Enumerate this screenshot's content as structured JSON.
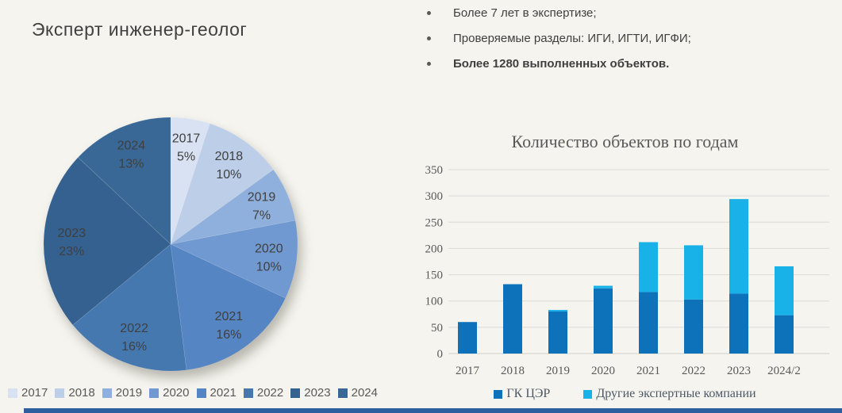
{
  "page": {
    "background": "#f5f4ef",
    "accent_bar_color": "#2d5e9e"
  },
  "title": "Эксперт инженер-геолог",
  "bullets": [
    {
      "text": "Более 7 лет в экспертизе;",
      "bold": false
    },
    {
      "text": "Проверяемые разделы: ИГИ, ИГТИ, ИГФИ;",
      "bold": false
    },
    {
      "text": "Более 1280 выполненных объектов.",
      "bold": true
    }
  ],
  "chart_data": [
    {
      "type": "pie",
      "title": "",
      "labels": [
        "2017",
        "2018",
        "2019",
        "2020",
        "2021",
        "2022",
        "2023",
        "2024"
      ],
      "values": [
        5,
        10,
        7,
        10,
        16,
        16,
        23,
        13
      ],
      "value_suffix": "%",
      "colors": [
        "#d9e2f2",
        "#bccee8",
        "#8fb0dc",
        "#7099d1",
        "#5685c3",
        "#4678b0",
        "#34618f",
        "#396897"
      ],
      "label_color": "#3f3f3f",
      "start_angle_deg": 0,
      "direction": "clockwise",
      "legend_position": "bottom"
    },
    {
      "type": "bar",
      "stacked": true,
      "title": "Количество объектов по годам",
      "categories": [
        "2017",
        "2018",
        "2019",
        "2020",
        "2021",
        "2022",
        "2023",
        "2024/2"
      ],
      "series": [
        {
          "name": "ГК ЦЭР",
          "color": "#0d72ba",
          "values": [
            60,
            132,
            80,
            124,
            117,
            103,
            114,
            73
          ]
        },
        {
          "name": "Другие экспертные компании",
          "color": "#18b1e8",
          "values": [
            0,
            0,
            3,
            5,
            95,
            103,
            180,
            93
          ]
        }
      ],
      "ylim": [
        0,
        350
      ],
      "ytick_step": 50,
      "yticks": [
        "0",
        "50",
        "100",
        "150",
        "200",
        "250",
        "300",
        "350"
      ],
      "grid": true,
      "grid_color": "#dcdbd6",
      "axis_text_color": "#595959",
      "legend_position": "bottom"
    }
  ]
}
